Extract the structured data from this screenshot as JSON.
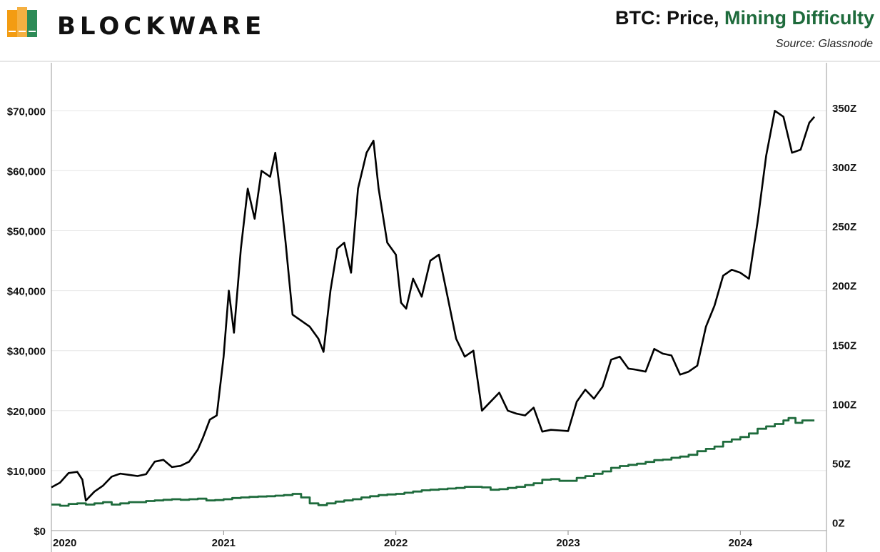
{
  "header": {
    "brand": "BLOCKWARE",
    "title_prefix": "BTC: Price, ",
    "title_highlight": "Mining Difficulty",
    "source": "Source: Glassnode"
  },
  "colors": {
    "price": "#000000",
    "difficulty": "#1e6b3c",
    "logo_orange": "#f39c12",
    "logo_green": "#2e8b57"
  },
  "chart_data": {
    "type": "line",
    "x_axis": {
      "ticks": [
        "2020",
        "2021",
        "2022",
        "2023",
        "2024"
      ],
      "range": [
        2020.0,
        2024.5
      ]
    },
    "y_left": {
      "ticks": [
        "$0",
        "$10,000",
        "$20,000",
        "$30,000",
        "$40,000",
        "$50,000",
        "$60,000",
        "$70,000"
      ],
      "range": [
        0,
        78000
      ],
      "unit": "USD"
    },
    "y_right": {
      "ticks": [
        "0Z",
        "50Z",
        "100Z",
        "150Z",
        "200Z",
        "250Z",
        "300Z",
        "350Z"
      ],
      "range": [
        -7,
        388
      ]
    },
    "grid": "horizontal",
    "series": [
      {
        "axis": "left",
        "points": [
          [
            2020.0,
            7200
          ],
          [
            2020.05,
            8000
          ],
          [
            2020.1,
            9600
          ],
          [
            2020.15,
            9800
          ],
          [
            2020.18,
            8500
          ],
          [
            2020.2,
            5000
          ],
          [
            2020.25,
            6500
          ],
          [
            2020.3,
            7500
          ],
          [
            2020.35,
            9000
          ],
          [
            2020.4,
            9500
          ],
          [
            2020.45,
            9300
          ],
          [
            2020.5,
            9100
          ],
          [
            2020.55,
            9400
          ],
          [
            2020.6,
            11500
          ],
          [
            2020.65,
            11800
          ],
          [
            2020.7,
            10600
          ],
          [
            2020.75,
            10800
          ],
          [
            2020.8,
            11500
          ],
          [
            2020.85,
            13500
          ],
          [
            2020.88,
            15500
          ],
          [
            2020.92,
            18500
          ],
          [
            2020.96,
            19200
          ],
          [
            2021.0,
            29000
          ],
          [
            2021.03,
            40000
          ],
          [
            2021.06,
            33000
          ],
          [
            2021.1,
            47000
          ],
          [
            2021.14,
            57000
          ],
          [
            2021.18,
            52000
          ],
          [
            2021.22,
            60000
          ],
          [
            2021.27,
            59000
          ],
          [
            2021.3,
            63000
          ],
          [
            2021.33,
            56000
          ],
          [
            2021.36,
            48000
          ],
          [
            2021.4,
            36000
          ],
          [
            2021.45,
            35000
          ],
          [
            2021.5,
            34000
          ],
          [
            2021.55,
            32000
          ],
          [
            2021.58,
            29800
          ],
          [
            2021.62,
            40000
          ],
          [
            2021.66,
            47000
          ],
          [
            2021.7,
            48000
          ],
          [
            2021.74,
            43000
          ],
          [
            2021.78,
            57000
          ],
          [
            2021.83,
            63000
          ],
          [
            2021.87,
            65000
          ],
          [
            2021.9,
            57000
          ],
          [
            2021.95,
            48000
          ],
          [
            2022.0,
            46000
          ],
          [
            2022.03,
            38000
          ],
          [
            2022.06,
            37000
          ],
          [
            2022.1,
            42000
          ],
          [
            2022.15,
            39000
          ],
          [
            2022.2,
            45000
          ],
          [
            2022.25,
            46000
          ],
          [
            2022.3,
            39000
          ],
          [
            2022.35,
            32000
          ],
          [
            2022.4,
            29000
          ],
          [
            2022.45,
            30000
          ],
          [
            2022.5,
            20000
          ],
          [
            2022.55,
            21500
          ],
          [
            2022.6,
            23000
          ],
          [
            2022.65,
            20000
          ],
          [
            2022.7,
            19500
          ],
          [
            2022.75,
            19200
          ],
          [
            2022.8,
            20500
          ],
          [
            2022.85,
            16500
          ],
          [
            2022.9,
            16800
          ],
          [
            2022.95,
            16700
          ],
          [
            2023.0,
            16600
          ],
          [
            2023.05,
            21500
          ],
          [
            2023.1,
            23500
          ],
          [
            2023.15,
            22000
          ],
          [
            2023.2,
            24000
          ],
          [
            2023.25,
            28500
          ],
          [
            2023.3,
            29000
          ],
          [
            2023.35,
            27000
          ],
          [
            2023.4,
            26800
          ],
          [
            2023.45,
            26500
          ],
          [
            2023.5,
            30300
          ],
          [
            2023.55,
            29500
          ],
          [
            2023.6,
            29200
          ],
          [
            2023.65,
            26000
          ],
          [
            2023.7,
            26500
          ],
          [
            2023.75,
            27500
          ],
          [
            2023.8,
            34000
          ],
          [
            2023.85,
            37500
          ],
          [
            2023.9,
            42500
          ],
          [
            2023.95,
            43500
          ],
          [
            2024.0,
            43000
          ],
          [
            2024.05,
            42000
          ],
          [
            2024.1,
            51500
          ],
          [
            2024.15,
            62500
          ],
          [
            2024.2,
            70000
          ],
          [
            2024.25,
            69000
          ],
          [
            2024.3,
            63000
          ],
          [
            2024.35,
            63500
          ],
          [
            2024.4,
            68000
          ],
          [
            2024.43,
            69000
          ]
        ]
      },
      {
        "axis": "right",
        "points": [
          [
            2020.0,
            15
          ],
          [
            2020.05,
            14
          ],
          [
            2020.1,
            15.5
          ],
          [
            2020.15,
            16
          ],
          [
            2020.2,
            15
          ],
          [
            2020.25,
            16
          ],
          [
            2020.3,
            17
          ],
          [
            2020.35,
            15
          ],
          [
            2020.4,
            16
          ],
          [
            2020.45,
            17
          ],
          [
            2020.5,
            17
          ],
          [
            2020.55,
            18
          ],
          [
            2020.6,
            18.5
          ],
          [
            2020.65,
            19
          ],
          [
            2020.7,
            19.5
          ],
          [
            2020.75,
            19
          ],
          [
            2020.8,
            19.5
          ],
          [
            2020.85,
            20
          ],
          [
            2020.9,
            18.5
          ],
          [
            2020.95,
            18.8
          ],
          [
            2021.0,
            19.5
          ],
          [
            2021.05,
            20.5
          ],
          [
            2021.1,
            21
          ],
          [
            2021.15,
            21.5
          ],
          [
            2021.2,
            21.8
          ],
          [
            2021.25,
            22
          ],
          [
            2021.3,
            22.5
          ],
          [
            2021.35,
            23
          ],
          [
            2021.4,
            24
          ],
          [
            2021.45,
            21
          ],
          [
            2021.5,
            16
          ],
          [
            2021.55,
            14.5
          ],
          [
            2021.6,
            16
          ],
          [
            2021.65,
            17.5
          ],
          [
            2021.7,
            18.5
          ],
          [
            2021.75,
            19.5
          ],
          [
            2021.8,
            21
          ],
          [
            2021.85,
            22
          ],
          [
            2021.9,
            23
          ],
          [
            2021.95,
            23.5
          ],
          [
            2022.0,
            24
          ],
          [
            2022.05,
            25
          ],
          [
            2022.1,
            26
          ],
          [
            2022.15,
            27
          ],
          [
            2022.2,
            27.5
          ],
          [
            2022.25,
            28
          ],
          [
            2022.3,
            28.5
          ],
          [
            2022.35,
            29
          ],
          [
            2022.4,
            30
          ],
          [
            2022.45,
            30
          ],
          [
            2022.5,
            29.5
          ],
          [
            2022.55,
            27.5
          ],
          [
            2022.6,
            28
          ],
          [
            2022.65,
            29
          ],
          [
            2022.7,
            30
          ],
          [
            2022.75,
            31.5
          ],
          [
            2022.8,
            33
          ],
          [
            2022.85,
            36
          ],
          [
            2022.9,
            36.5
          ],
          [
            2022.95,
            35
          ],
          [
            2023.0,
            35
          ],
          [
            2023.05,
            37.5
          ],
          [
            2023.1,
            39
          ],
          [
            2023.15,
            41
          ],
          [
            2023.2,
            43
          ],
          [
            2023.25,
            46
          ],
          [
            2023.3,
            47.5
          ],
          [
            2023.35,
            48.5
          ],
          [
            2023.4,
            49.5
          ],
          [
            2023.45,
            51
          ],
          [
            2023.5,
            52.5
          ],
          [
            2023.55,
            53
          ],
          [
            2023.6,
            54.5
          ],
          [
            2023.65,
            55.5
          ],
          [
            2023.7,
            57
          ],
          [
            2023.75,
            60
          ],
          [
            2023.8,
            62
          ],
          [
            2023.85,
            64
          ],
          [
            2023.9,
            68
          ],
          [
            2023.95,
            70
          ],
          [
            2024.0,
            72
          ],
          [
            2024.05,
            75
          ],
          [
            2024.1,
            79
          ],
          [
            2024.15,
            81
          ],
          [
            2024.2,
            83
          ],
          [
            2024.25,
            86
          ],
          [
            2024.28,
            88
          ],
          [
            2024.32,
            84
          ],
          [
            2024.36,
            86
          ],
          [
            2024.4,
            86
          ],
          [
            2024.43,
            86
          ]
        ]
      }
    ]
  }
}
